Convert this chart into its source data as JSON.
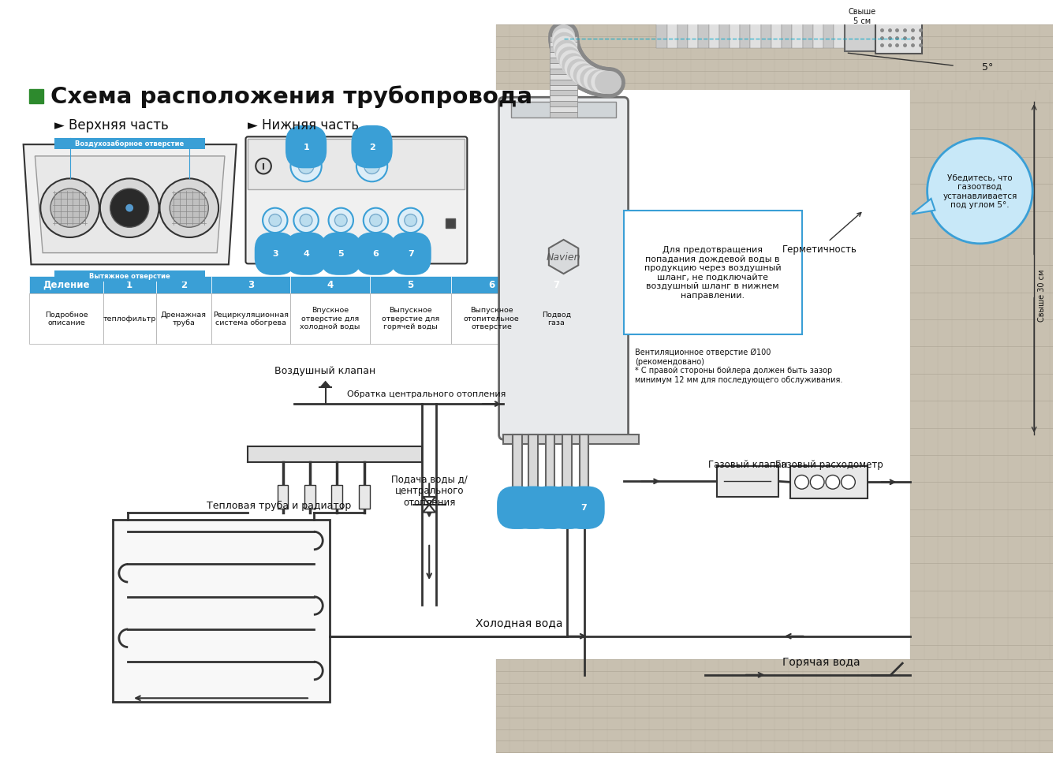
{
  "title": "Схема расположения трубопровода",
  "title_bullet_color": "#2d8a2d",
  "upper_label": "► Верхняя часть",
  "lower_label": "► Нижняя часть",
  "table_header": [
    "Деление",
    "1",
    "2",
    "3",
    "4",
    "5",
    "6",
    "7"
  ],
  "table_header_bg": "#3a9fd6",
  "table_row": [
    "Подробное\nописание",
    "теплофильтр",
    "Дренажная\nтруба",
    "Рециркуляционная\nсистема обогрева",
    "Впускное\nотверстие для\nхолодной воды",
    "Выпускное\nотверстие для\nгорячей воды",
    "Выпускное\nотопительное\nотверстие",
    "Подвод\nгаза"
  ],
  "bg_color": "#ffffff",
  "line_color": "#333333",
  "blue_color": "#3a9fd6",
  "light_blue_callout": "#c8e8f8",
  "annotation_box_text": "Для предотвращения\nпопадания дождевой воды в\nпродукцию через воздушный\nшланг, не подключайте\nвоздушный шланг в нижнем\nнаправлении.",
  "callout_text": "Убедитесь, что\nгазоотвод\nустанавливается\nпод углом 5°.",
  "label_airtight": "Герметичность",
  "label_vent": "Вентиляционное отверстие Ø100\n(рекомендовано)\n* С правой стороны бойлера должен быть зазор\nминимум 12 мм для последующего обслуживания.",
  "label_air_valve": "Воздушный клапан",
  "label_return": "Обратка центрального отопления",
  "label_heat_pipe": "Тепловая труба и радиатор",
  "label_supply": "Подача воды д/\nцентрального\nотопления",
  "label_cold": "Холодная вода",
  "label_hot": "Горячая вода",
  "label_gas_meter": "Газовый расходометр",
  "label_gas_valve": "Газовый клапан",
  "label_above5cm": "Свыше\n5 см",
  "label_above30cm": "Свыше 30 см",
  "label_5deg": "5°",
  "label_air_hose_top": "Воздухозаборное отверстие",
  "label_exhaust_top": "Вытяжное отверстие"
}
